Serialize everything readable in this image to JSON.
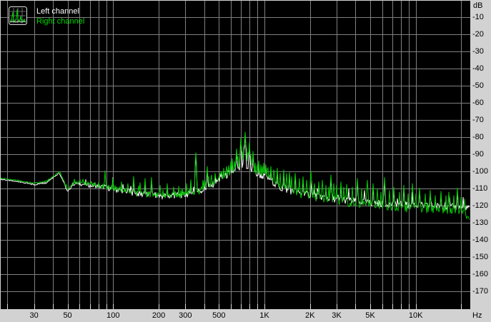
{
  "legend": {
    "icon": "mini-spectrum-icon",
    "items": [
      {
        "label": "Left channel",
        "color": "#ffffff"
      },
      {
        "label": "Right channel",
        "color": "#00c800"
      }
    ]
  },
  "axes": {
    "y_unit": "dB",
    "x_unit": "Hz",
    "y_tick_labels": [
      "-10",
      "-20",
      "-30",
      "-40",
      "-50",
      "-60",
      "-70",
      "-80",
      "-90",
      "-100",
      "-110",
      "-120",
      "-130",
      "-140",
      "-150",
      "-160",
      "-170"
    ],
    "x_tick_labels": [
      {
        "label": "30",
        "f": 30
      },
      {
        "label": "50",
        "f": 50
      },
      {
        "label": "100",
        "f": 100
      },
      {
        "label": "200",
        "f": 200
      },
      {
        "label": "300",
        "f": 300
      },
      {
        "label": "500",
        "f": 500
      },
      {
        "label": "1K",
        "f": 1000
      },
      {
        "label": "2K",
        "f": 2000
      },
      {
        "label": "3K",
        "f": 3000
      },
      {
        "label": "5K",
        "f": 5000
      },
      {
        "label": "10K",
        "f": 10000
      }
    ]
  },
  "colors": {
    "plot_bg": "#000000",
    "panel_bg": "#d2d2d2",
    "grid": "#808080",
    "tick": "#e0e0e0",
    "left_channel": "#ffffff",
    "right_channel": "#00c800",
    "legend_right_text": "#00d800",
    "label_text": "#000000"
  },
  "chart_data": {
    "type": "line",
    "x_scale": "log",
    "x_range_hz": [
      18,
      23000
    ],
    "y_range_db": [
      -180,
      0
    ],
    "grid": true,
    "legend_position": "top-left",
    "x_gridlines_hz": [
      20,
      30,
      40,
      50,
      60,
      70,
      80,
      90,
      100,
      200,
      300,
      400,
      500,
      600,
      700,
      800,
      900,
      1000,
      2000,
      3000,
      4000,
      5000,
      6000,
      7000,
      8000,
      9000,
      10000,
      20000
    ],
    "y_gridlines_db": [
      -10,
      -20,
      -30,
      -40,
      -50,
      -60,
      -70,
      -80,
      -90,
      -100,
      -110,
      -120,
      -130,
      -140,
      -150,
      -160,
      -170
    ],
    "series": [
      {
        "name": "Left channel",
        "color": "#ffffff",
        "floor_points_hz_db_noise": [
          [
            18,
            -104.6,
            0.3
          ],
          [
            24,
            -106.2,
            0.3
          ],
          [
            30,
            -107.8,
            0.4
          ],
          [
            36,
            -106.6,
            0.5
          ],
          [
            41,
            -103,
            0.4
          ],
          [
            44,
            -100.8,
            0.4
          ],
          [
            47,
            -106,
            0.5
          ],
          [
            50,
            -112.2,
            0.6
          ],
          [
            54,
            -107.6,
            0.8
          ],
          [
            60,
            -107.2,
            1
          ],
          [
            70,
            -108.2,
            1.2
          ],
          [
            85,
            -109,
            1.4
          ],
          [
            100,
            -110.5,
            1.6
          ],
          [
            120,
            -111.4,
            1.7
          ],
          [
            140,
            -112.8,
            1.8
          ],
          [
            170,
            -113.8,
            1.9
          ],
          [
            200,
            -114.2,
            1.9
          ],
          [
            230,
            -114.6,
            1.9
          ],
          [
            260,
            -114.2,
            1.9
          ],
          [
            300,
            -113.6,
            1.9
          ],
          [
            340,
            -112.6,
            2
          ],
          [
            380,
            -111.2,
            2
          ],
          [
            420,
            -109.7,
            2
          ],
          [
            460,
            -107.4,
            2
          ],
          [
            500,
            -105,
            2
          ],
          [
            550,
            -102.8,
            2
          ],
          [
            600,
            -101.2,
            2
          ],
          [
            650,
            -99.8,
            2
          ],
          [
            700,
            -98.2,
            2
          ],
          [
            750,
            -97.8,
            2
          ],
          [
            800,
            -99.2,
            2
          ],
          [
            850,
            -100.8,
            2
          ],
          [
            900,
            -101.8,
            2
          ],
          [
            950,
            -102.6,
            2
          ],
          [
            1000,
            -103.2,
            2
          ],
          [
            1100,
            -104.6,
            2
          ],
          [
            1200,
            -108.2,
            2
          ],
          [
            1300,
            -110.2,
            2
          ],
          [
            1500,
            -111.6,
            2
          ],
          [
            1700,
            -112.8,
            2
          ],
          [
            2000,
            -113.8,
            2
          ],
          [
            2400,
            -115,
            2
          ],
          [
            3000,
            -116.4,
            2
          ],
          [
            4000,
            -117.6,
            2
          ],
          [
            5000,
            -118.4,
            2
          ],
          [
            7000,
            -119.2,
            2
          ],
          [
            10000,
            -119.8,
            2
          ],
          [
            14000,
            -120.4,
            2
          ],
          [
            18000,
            -120.8,
            2
          ],
          [
            20500,
            -121,
            1.8
          ],
          [
            22000,
            -121.2,
            1.4
          ],
          [
            23000,
            -121.4,
            1
          ]
        ],
        "peaks_hz_db": [
          [
            100,
            -103.5
          ],
          [
            136,
            -104.5
          ],
          [
            163,
            -106
          ],
          [
            180,
            -105.2
          ],
          [
            227,
            -108.5
          ],
          [
            325,
            -106
          ],
          [
            352,
            -91
          ],
          [
            420,
            -99
          ],
          [
            470,
            -102.5
          ],
          [
            538,
            -99.5
          ],
          [
            600,
            -95.5
          ],
          [
            615,
            -94
          ],
          [
            655,
            -88.2
          ],
          [
            700,
            -82
          ],
          [
            730,
            -88
          ],
          [
            748,
            -78.6
          ],
          [
            795,
            -85
          ],
          [
            843,
            -90
          ],
          [
            915,
            -95.2
          ],
          [
            1020,
            -97.5
          ],
          [
            1100,
            -98.5
          ],
          [
            1210,
            -100
          ],
          [
            1340,
            -101
          ],
          [
            1460,
            -102
          ],
          [
            1600,
            -102.5
          ],
          [
            1800,
            -104.5
          ],
          [
            2060,
            -105.4
          ],
          [
            2280,
            -108
          ],
          [
            2560,
            -110
          ],
          [
            2760,
            -104
          ],
          [
            3200,
            -108
          ],
          [
            3600,
            -110
          ],
          [
            4120,
            -106
          ],
          [
            4600,
            -111
          ],
          [
            5200,
            -109
          ],
          [
            6200,
            -106
          ],
          [
            7200,
            -111
          ],
          [
            8300,
            -110
          ],
          [
            9500,
            -112
          ],
          [
            10600,
            -111
          ],
          [
            12500,
            -113
          ],
          [
            14700,
            -113
          ],
          [
            16600,
            -114
          ],
          [
            18900,
            -112
          ],
          [
            20500,
            -115
          ]
        ]
      },
      {
        "name": "Right channel",
        "color": "#00c800",
        "floor_points_hz_db_noise": [
          [
            18,
            -104,
            0.3
          ],
          [
            24,
            -105.5,
            0.3
          ],
          [
            30,
            -107,
            0.4
          ],
          [
            36,
            -106,
            0.5
          ],
          [
            41,
            -102.5,
            0.4
          ],
          [
            44,
            -100.2,
            0.4
          ],
          [
            47,
            -105,
            0.5
          ],
          [
            50,
            -111,
            0.6
          ],
          [
            54,
            -107,
            0.8
          ],
          [
            60,
            -106.5,
            1
          ],
          [
            70,
            -107.5,
            1.2
          ],
          [
            85,
            -108.5,
            1.4
          ],
          [
            100,
            -110,
            1.6
          ],
          [
            120,
            -111,
            1.7
          ],
          [
            140,
            -112.5,
            1.8
          ],
          [
            170,
            -113.5,
            1.9
          ],
          [
            200,
            -114,
            1.9
          ],
          [
            230,
            -114.5,
            1.9
          ],
          [
            260,
            -114,
            1.9
          ],
          [
            300,
            -113.5,
            1.9
          ],
          [
            340,
            -112.5,
            2
          ],
          [
            380,
            -111,
            2
          ],
          [
            420,
            -109.5,
            2
          ],
          [
            460,
            -107,
            2
          ],
          [
            500,
            -104.5,
            2
          ],
          [
            550,
            -102,
            2
          ],
          [
            600,
            -100.5,
            2
          ],
          [
            650,
            -99,
            2
          ],
          [
            700,
            -97.5,
            2
          ],
          [
            750,
            -97,
            2
          ],
          [
            800,
            -98.5,
            2
          ],
          [
            850,
            -100,
            2
          ],
          [
            900,
            -101,
            2
          ],
          [
            950,
            -102,
            2
          ],
          [
            1000,
            -102.5,
            2
          ],
          [
            1100,
            -104,
            2
          ],
          [
            1200,
            -108,
            2
          ],
          [
            1300,
            -110.5,
            2
          ],
          [
            1500,
            -112,
            2.1
          ],
          [
            1700,
            -113.5,
            2.1
          ],
          [
            2000,
            -115,
            2.1
          ],
          [
            2400,
            -116.5,
            2.1
          ],
          [
            3000,
            -118,
            2.1
          ],
          [
            4000,
            -119.5,
            2.1
          ],
          [
            5000,
            -120.5,
            2.1
          ],
          [
            7000,
            -121.5,
            2.2
          ],
          [
            10000,
            -122,
            2.2
          ],
          [
            14000,
            -122.5,
            2.2
          ],
          [
            18000,
            -123,
            2.2
          ],
          [
            20500,
            -124,
            1.8
          ],
          [
            22000,
            -127,
            1.4
          ],
          [
            23000,
            -129,
            1
          ]
        ],
        "peaks_hz_db": [
          [
            88,
            -99.5
          ],
          [
            100,
            -104
          ],
          [
            113,
            -106
          ],
          [
            125,
            -107
          ],
          [
            136,
            -102.8
          ],
          [
            150,
            -106.5
          ],
          [
            163,
            -104
          ],
          [
            180,
            -103.4
          ],
          [
            204,
            -108
          ],
          [
            227,
            -107
          ],
          [
            250,
            -109
          ],
          [
            270,
            -108.5
          ],
          [
            285,
            -110
          ],
          [
            307,
            -107
          ],
          [
            325,
            -104.8
          ],
          [
            352,
            -89
          ],
          [
            394,
            -105
          ],
          [
            420,
            -97
          ],
          [
            445,
            -102
          ],
          [
            470,
            -101
          ],
          [
            490,
            -106
          ],
          [
            508,
            -101
          ],
          [
            520,
            -100
          ],
          [
            538,
            -98
          ],
          [
            560,
            -97
          ],
          [
            580,
            -96.5
          ],
          [
            600,
            -94
          ],
          [
            615,
            -92.4
          ],
          [
            632,
            -94
          ],
          [
            655,
            -86.7
          ],
          [
            672,
            -91
          ],
          [
            688,
            -88
          ],
          [
            700,
            -80.4
          ],
          [
            715,
            -89
          ],
          [
            730,
            -86
          ],
          [
            748,
            -77
          ],
          [
            765,
            -87
          ],
          [
            780,
            -89
          ],
          [
            795,
            -83.3
          ],
          [
            815,
            -91
          ],
          [
            843,
            -88.2
          ],
          [
            870,
            -95
          ],
          [
            895,
            -96
          ],
          [
            915,
            -93.7
          ],
          [
            945,
            -96
          ],
          [
            965,
            -97
          ],
          [
            985,
            -95
          ],
          [
            1020,
            -96
          ],
          [
            1060,
            -98
          ],
          [
            1100,
            -97
          ],
          [
            1150,
            -99
          ],
          [
            1210,
            -98
          ],
          [
            1270,
            -101
          ],
          [
            1340,
            -99
          ],
          [
            1400,
            -101
          ],
          [
            1460,
            -100.5
          ],
          [
            1520,
            -103
          ],
          [
            1600,
            -101
          ],
          [
            1700,
            -104
          ],
          [
            1800,
            -103
          ],
          [
            1900,
            -105
          ],
          [
            2030,
            -99.7
          ],
          [
            2150,
            -107
          ],
          [
            2280,
            -106
          ],
          [
            2420,
            -105
          ],
          [
            2560,
            -108
          ],
          [
            2660,
            -109
          ],
          [
            2760,
            -102
          ],
          [
            2870,
            -107
          ],
          [
            3000,
            -108
          ],
          [
            3200,
            -106
          ],
          [
            3350,
            -109
          ],
          [
            3500,
            -107.5
          ],
          [
            3800,
            -109
          ],
          [
            4120,
            -104
          ],
          [
            4400,
            -110
          ],
          [
            4770,
            -105
          ],
          [
            5200,
            -107
          ],
          [
            5600,
            -110
          ],
          [
            5900,
            -112
          ],
          [
            6200,
            -103.4
          ],
          [
            6700,
            -111
          ],
          [
            7200,
            -109
          ],
          [
            7800,
            -112
          ],
          [
            8300,
            -108
          ],
          [
            8900,
            -113
          ],
          [
            9500,
            -107
          ],
          [
            10000,
            -113
          ],
          [
            10600,
            -109.6
          ],
          [
            11500,
            -113
          ],
          [
            12500,
            -111
          ],
          [
            13500,
            -114
          ],
          [
            14700,
            -111.5
          ],
          [
            15800,
            -114
          ],
          [
            16600,
            -112
          ],
          [
            17800,
            -114
          ],
          [
            18900,
            -109.6
          ],
          [
            20000,
            -115
          ],
          [
            21000,
            -116
          ]
        ]
      }
    ]
  }
}
